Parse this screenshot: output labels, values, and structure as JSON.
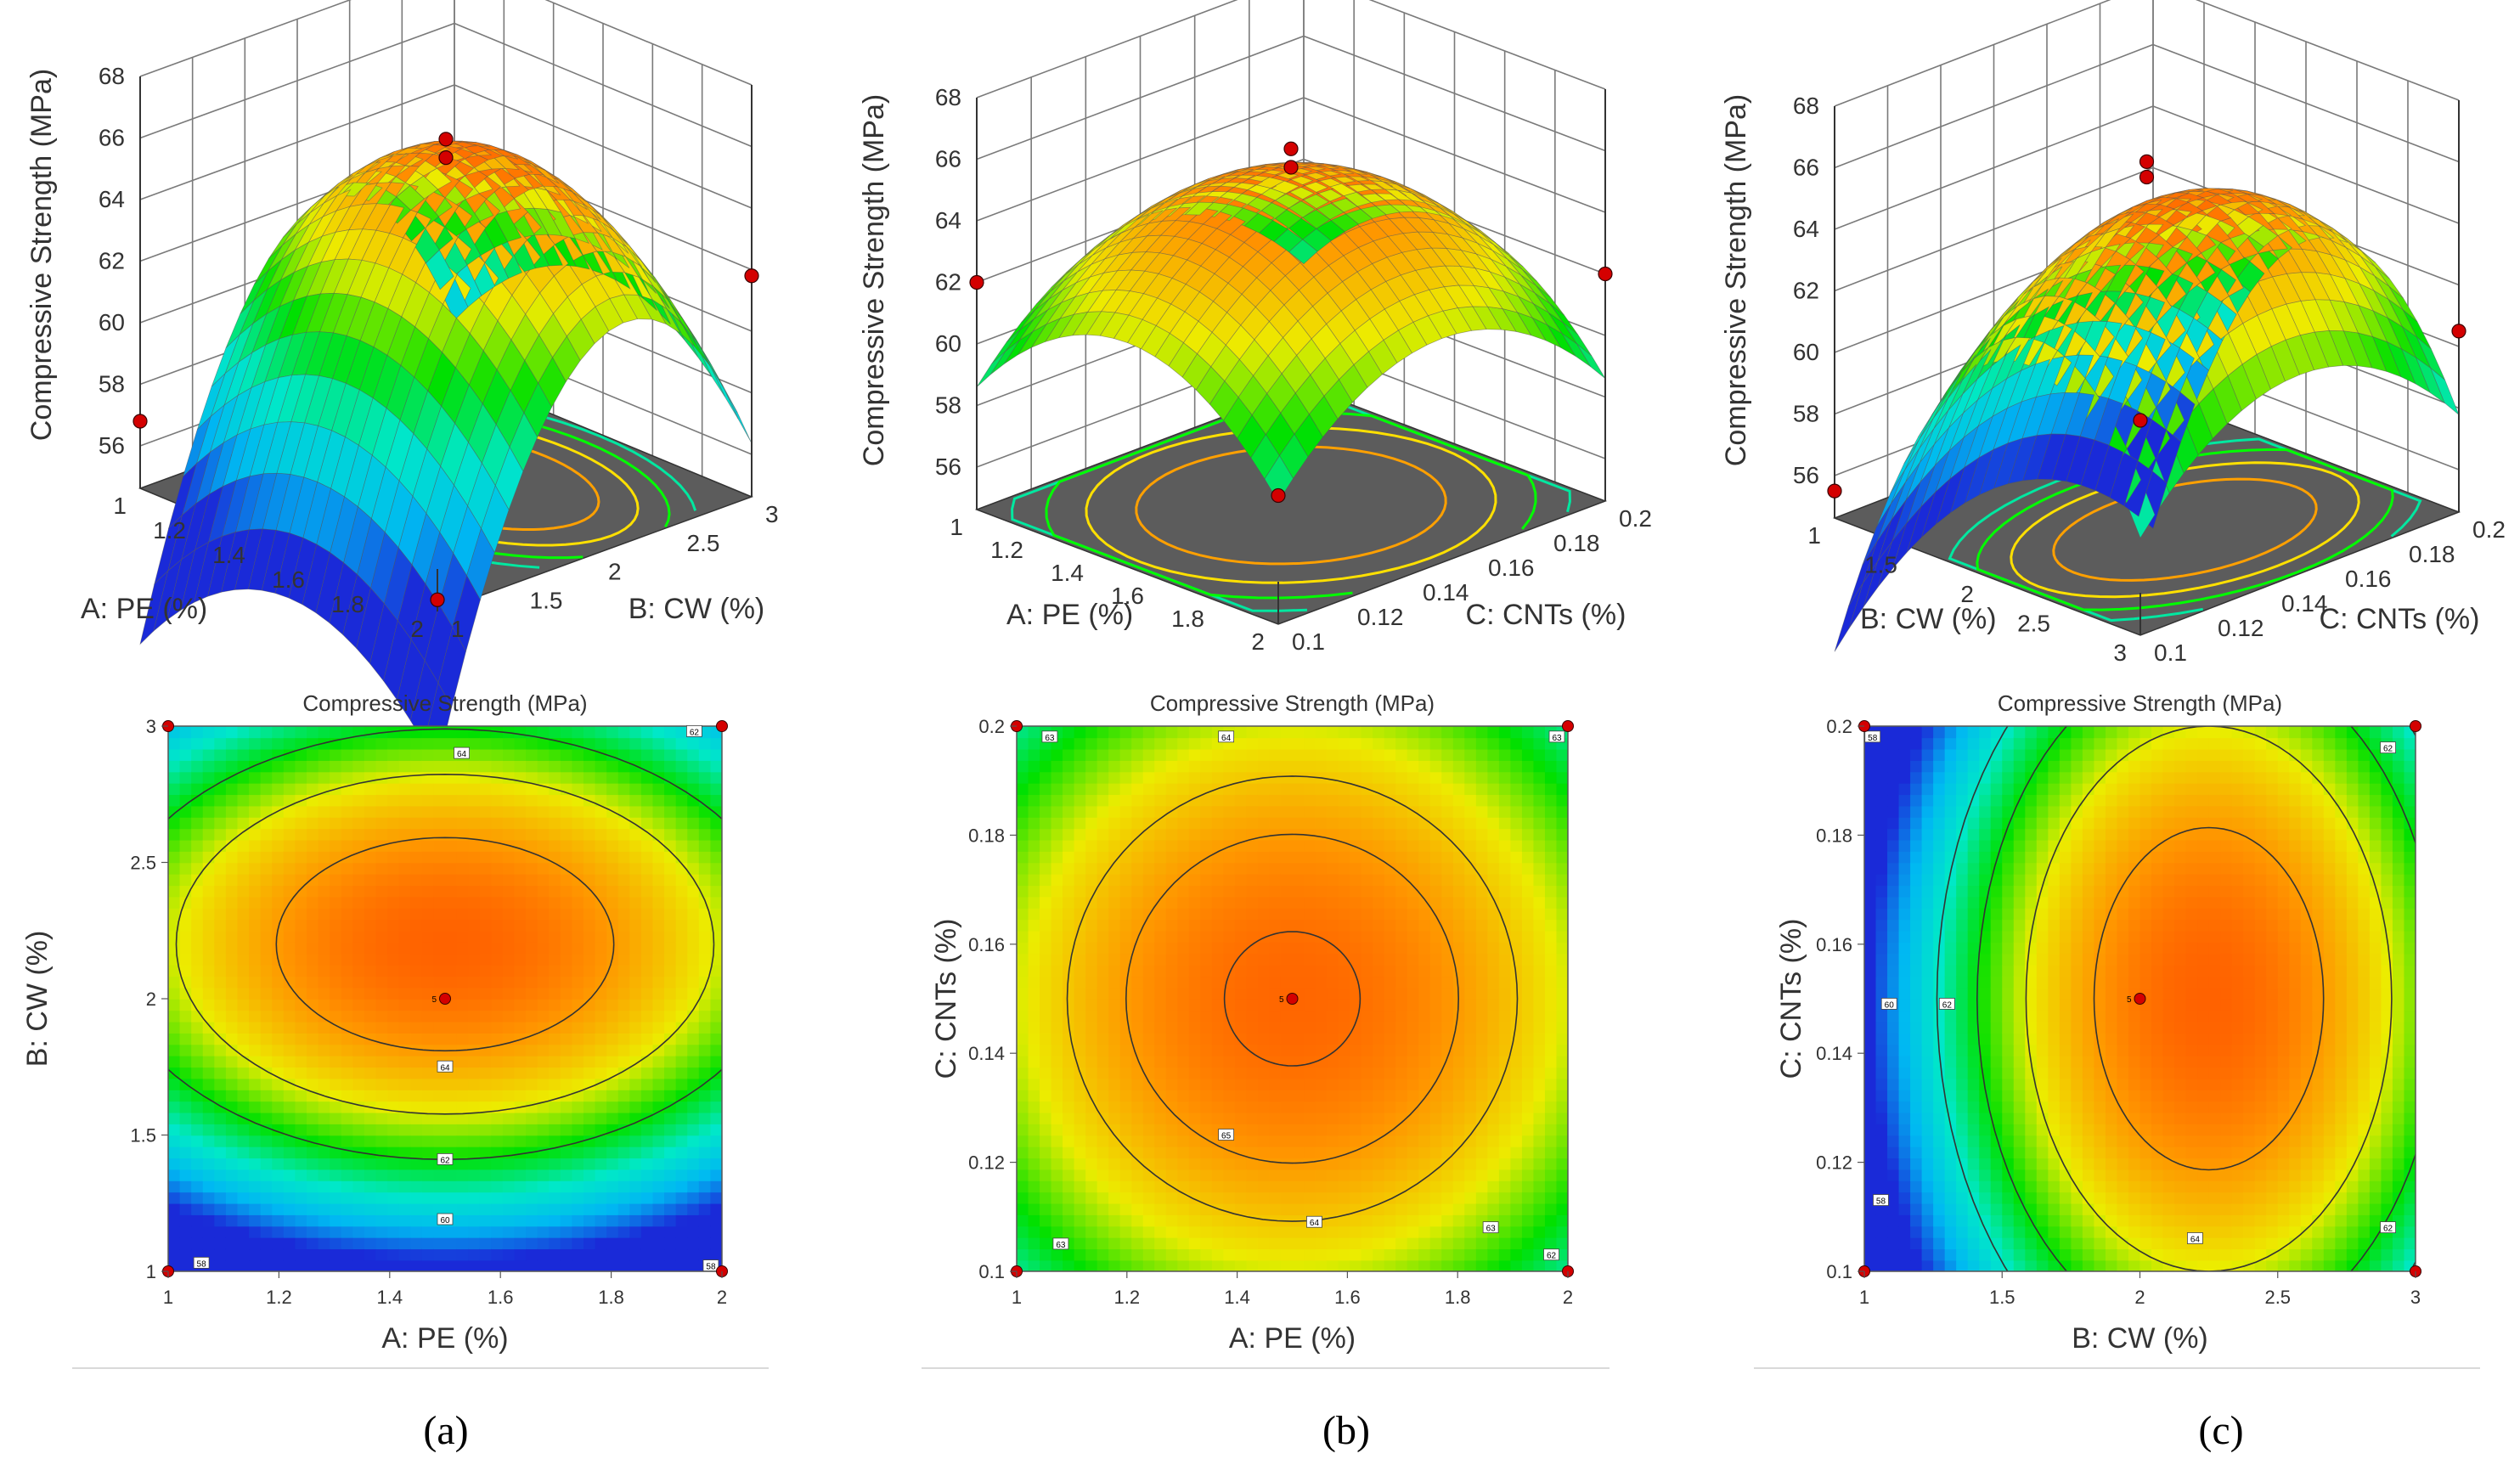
{
  "colors": {
    "scale": [
      "#1a2ad8",
      "#00b8f2",
      "#00e8c8",
      "#00e000",
      "#ecec00",
      "#ff9400",
      "#ff3a00"
    ],
    "floor": "#5c5c5c",
    "design_point": "#d40000",
    "design_point_below": "#f4c0c0",
    "contour_floor": [
      "#3aa0ff",
      "#00e8a0",
      "#00ff00",
      "#ffe000",
      "#ffa000"
    ]
  },
  "panel_labels": [
    "(a)",
    "(b)",
    "(c)"
  ],
  "chart_data": [
    {
      "type": "surface",
      "panel": "(a)",
      "zlabel": "Compressive Strength (MPa)",
      "xlabel": "A: PE (%)",
      "ylabel": "B: CW (%)",
      "xlim": [
        1,
        2
      ],
      "ylim": [
        1,
        3
      ],
      "zlim": [
        56,
        68
      ],
      "xticks": [
        "1",
        "1.2",
        "1.4",
        "1.6",
        "1.8",
        "2"
      ],
      "yticks": [
        "1",
        "1.5",
        "2",
        "2.5",
        "3"
      ],
      "zticks": [
        "56",
        "58",
        "60",
        "62",
        "64",
        "66",
        "68"
      ],
      "model": {
        "center": [
          1.5,
          2.2
        ],
        "zmax": 65.3,
        "ka": 3.5,
        "kb": 8.5
      },
      "design_points": [
        {
          "x": 1,
          "y": 1,
          "z": 56.8
        },
        {
          "x": 1.5,
          "y": 2,
          "z": 65.5
        },
        {
          "x": 1.5,
          "y": 2,
          "z": 66.1
        },
        {
          "x": 2,
          "y": 1,
          "z": 55.0
        },
        {
          "x": 2,
          "y": 3,
          "z": 61.8
        }
      ]
    },
    {
      "type": "surface",
      "panel": "(b)",
      "zlabel": "Compressive Strength (MPa)",
      "xlabel": "A: PE (%)",
      "ylabel": "C: CNTs (%)",
      "xlim": [
        1,
        2
      ],
      "ylim": [
        0.1,
        0.2
      ],
      "zlim": [
        56,
        68
      ],
      "xticks": [
        "1",
        "1.2",
        "1.4",
        "1.6",
        "1.8",
        "2"
      ],
      "yticks": [
        "0.1",
        "0.12",
        "0.14",
        "0.16",
        "0.18",
        "0.2"
      ],
      "zticks": [
        "56",
        "58",
        "60",
        "62",
        "64",
        "66",
        "68"
      ],
      "model": {
        "center": [
          1.5,
          0.15
        ],
        "zmax": 65.2,
        "ka": 3.3,
        "kb": 3.3
      },
      "design_points": [
        {
          "x": 1,
          "y": 0.1,
          "z": 62.0
        },
        {
          "x": 1.5,
          "y": 0.15,
          "z": 65.6
        },
        {
          "x": 1.5,
          "y": 0.15,
          "z": 66.2
        },
        {
          "x": 2,
          "y": 0.1,
          "z": 58.8
        },
        {
          "x": 2,
          "y": 0.2,
          "z": 62.0
        }
      ]
    },
    {
      "type": "surface",
      "panel": "(c)",
      "zlabel": "Compressive Strength (MPa)",
      "xlabel": "B: CW (%)",
      "ylabel": "C: CNTs (%)",
      "xlim": [
        1,
        3
      ],
      "ylim": [
        0.1,
        0.2
      ],
      "zlim": [
        56,
        68
      ],
      "xticks": [
        "1",
        "1.5",
        "2",
        "2.5",
        "3"
      ],
      "yticks": [
        "0.1",
        "0.12",
        "0.14",
        "0.16",
        "0.18",
        "0.2"
      ],
      "zticks": [
        "56",
        "58",
        "60",
        "62",
        "64",
        "66",
        "68"
      ],
      "model": {
        "center": [
          2.25,
          0.15
        ],
        "zmax": 65.3,
        "ka": 7.5,
        "kb": 3.3
      },
      "design_points": [
        {
          "x": 1,
          "y": 0.1,
          "z": 55.5
        },
        {
          "x": 2,
          "y": 0.15,
          "z": 65.6
        },
        {
          "x": 2,
          "y": 0.15,
          "z": 66.1
        },
        {
          "x": 3,
          "y": 0.1,
          "z": 61.6
        },
        {
          "x": 3,
          "y": 0.2,
          "z": 60.5
        }
      ]
    },
    {
      "type": "contour",
      "panel": "(a)",
      "title": "Compressive Strength (MPa)",
      "xlabel": "A: PE (%)",
      "ylabel": "B: CW (%)",
      "xlim": [
        1,
        2
      ],
      "ylim": [
        1,
        3
      ],
      "xticks": [
        1,
        1.2,
        1.4,
        1.6,
        1.8,
        2
      ],
      "yticks": [
        1,
        1.5,
        2,
        2.5,
        3
      ],
      "model": {
        "center": [
          1.5,
          2.2
        ],
        "zmax": 65.3,
        "ka": 3.5,
        "kb": 8.5
      },
      "levels": [
        60,
        62,
        64
      ],
      "contour_labels": [
        {
          "text": "64",
          "x": 1.53,
          "y": 2.9
        },
        {
          "text": "64",
          "x": 1.5,
          "y": 1.75
        },
        {
          "text": "62",
          "x": 1.5,
          "y": 1.41
        },
        {
          "text": "60",
          "x": 1.5,
          "y": 1.19
        },
        {
          "text": "58",
          "x": 1.06,
          "y": 1.03
        },
        {
          "text": "58",
          "x": 1.98,
          "y": 1.02
        },
        {
          "text": "62",
          "x": 1.95,
          "y": 2.98
        }
      ],
      "center_label": {
        "text": "5",
        "x": 1.5,
        "y": 2.0
      },
      "design_points": [
        [
          1,
          1
        ],
        [
          1,
          3
        ],
        [
          2,
          1
        ],
        [
          2,
          3
        ],
        [
          1.5,
          2
        ]
      ]
    },
    {
      "type": "contour",
      "panel": "(b)",
      "title": "Compressive Strength (MPa)",
      "xlabel": "A: PE (%)",
      "ylabel": "C: CNTs (%)",
      "xlim": [
        1,
        2
      ],
      "ylim": [
        0.1,
        0.2
      ],
      "xticks": [
        1,
        1.2,
        1.4,
        1.6,
        1.8,
        2
      ],
      "yticks": [
        0.1,
        0.12,
        0.14,
        0.16,
        0.18,
        0.2
      ],
      "model": {
        "center": [
          1.5,
          0.15
        ],
        "zmax": 65.2,
        "ka": 3.3,
        "kb": 3.3
      },
      "levels": [
        63,
        64,
        65
      ],
      "contour_labels": [
        {
          "text": "63",
          "x": 1.06,
          "y": 0.198
        },
        {
          "text": "64",
          "x": 1.38,
          "y": 0.198
        },
        {
          "text": "63",
          "x": 1.98,
          "y": 0.198
        },
        {
          "text": "65",
          "x": 1.38,
          "y": 0.125
        },
        {
          "text": "64",
          "x": 1.54,
          "y": 0.109
        },
        {
          "text": "63",
          "x": 1.08,
          "y": 0.105
        },
        {
          "text": "63",
          "x": 1.86,
          "y": 0.108
        },
        {
          "text": "62",
          "x": 1.97,
          "y": 0.103
        }
      ],
      "center_label": {
        "text": "5",
        "x": 1.5,
        "y": 0.15
      },
      "design_points": [
        [
          1,
          0.1
        ],
        [
          1,
          0.2
        ],
        [
          2,
          0.1
        ],
        [
          2,
          0.2
        ],
        [
          1.5,
          0.15
        ]
      ]
    },
    {
      "type": "contour",
      "panel": "(c)",
      "title": "Compressive Strength (MPa)",
      "xlabel": "B: CW (%)",
      "ylabel": "C: CNTs (%)",
      "xlim": [
        1,
        3
      ],
      "ylim": [
        0.1,
        0.2
      ],
      "xticks": [
        1,
        1.5,
        2,
        2.5,
        3
      ],
      "yticks": [
        0.1,
        0.12,
        0.14,
        0.16,
        0.18,
        0.2
      ],
      "model": {
        "center": [
          2.25,
          0.15
        ],
        "zmax": 65.3,
        "ka": 7.5,
        "kb": 3.3
      },
      "levels": [
        58,
        60,
        62,
        64
      ],
      "contour_labels": [
        {
          "text": "58",
          "x": 1.03,
          "y": 0.198
        },
        {
          "text": "60",
          "x": 1.09,
          "y": 0.149
        },
        {
          "text": "62",
          "x": 1.3,
          "y": 0.149
        },
        {
          "text": "58",
          "x": 1.06,
          "y": 0.113
        },
        {
          "text": "64",
          "x": 2.2,
          "y": 0.106
        },
        {
          "text": "62",
          "x": 2.9,
          "y": 0.108
        },
        {
          "text": "62",
          "x": 2.9,
          "y": 0.196
        }
      ],
      "center_label": {
        "text": "5",
        "x": 2.0,
        "y": 0.15
      },
      "design_points": [
        [
          1,
          0.1
        ],
        [
          1,
          0.2
        ],
        [
          3,
          0.1
        ],
        [
          3,
          0.2
        ],
        [
          2,
          0.15
        ]
      ]
    }
  ]
}
